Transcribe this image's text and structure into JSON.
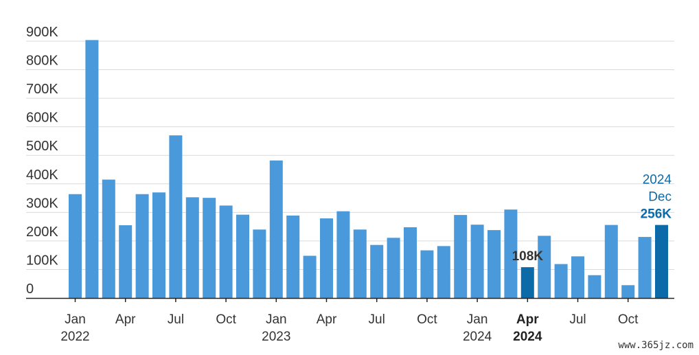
{
  "chart_data": {
    "type": "bar",
    "title": "",
    "xlabel": "",
    "ylabel": "",
    "ylim": [
      0,
      900000
    ],
    "y_ticks": [
      0,
      100000,
      200000,
      300000,
      400000,
      500000,
      600000,
      700000,
      800000,
      900000
    ],
    "y_tick_labels": [
      "0",
      "100K",
      "200K",
      "300K",
      "400K",
      "500K",
      "600K",
      "700K",
      "800K",
      "900K"
    ],
    "grid": true,
    "colors": {
      "bar": "#4A9ADB",
      "highlight": "#0D6AA8",
      "grid": "#d9d9d9",
      "axis": "#222222"
    },
    "categories": [
      "2022-01",
      "2022-02",
      "2022-03",
      "2022-04",
      "2022-05",
      "2022-06",
      "2022-07",
      "2022-08",
      "2022-09",
      "2022-10",
      "2022-11",
      "2022-12",
      "2023-01",
      "2023-02",
      "2023-03",
      "2023-04",
      "2023-05",
      "2023-06",
      "2023-07",
      "2023-08",
      "2023-09",
      "2023-10",
      "2023-11",
      "2023-12",
      "2024-01",
      "2024-02",
      "2024-03",
      "2024-04",
      "2024-05",
      "2024-06",
      "2024-07",
      "2024-08",
      "2024-09",
      "2024-10",
      "2024-11",
      "2024-12"
    ],
    "values": [
      364000,
      904000,
      415000,
      255000,
      364000,
      370000,
      570000,
      353000,
      351000,
      324000,
      292000,
      240000,
      482000,
      289000,
      148000,
      279000,
      304000,
      240000,
      186000,
      211000,
      248000,
      167000,
      182000,
      291000,
      257000,
      238000,
      310000,
      108000,
      218000,
      119000,
      146000,
      80000,
      256000,
      45000,
      214000,
      256000
    ],
    "highlighted": [
      "2024-04",
      "2024-12"
    ],
    "x_tick_labels": [
      {
        "category": "2022-01",
        "month": "Jan",
        "year": "2022",
        "bold": false
      },
      {
        "category": "2022-04",
        "month": "Apr",
        "year": "",
        "bold": false
      },
      {
        "category": "2022-07",
        "month": "Jul",
        "year": "",
        "bold": false
      },
      {
        "category": "2022-10",
        "month": "Oct",
        "year": "",
        "bold": false
      },
      {
        "category": "2023-01",
        "month": "Jan",
        "year": "2023",
        "bold": false
      },
      {
        "category": "2023-04",
        "month": "Apr",
        "year": "",
        "bold": false
      },
      {
        "category": "2023-07",
        "month": "Jul",
        "year": "",
        "bold": false
      },
      {
        "category": "2023-10",
        "month": "Oct",
        "year": "",
        "bold": false
      },
      {
        "category": "2024-01",
        "month": "Jan",
        "year": "2024",
        "bold": false
      },
      {
        "category": "2024-04",
        "month": "Apr",
        "year": "2024",
        "bold": true
      },
      {
        "category": "2024-07",
        "month": "Jul",
        "year": "",
        "bold": false
      },
      {
        "category": "2024-10",
        "month": "Oct",
        "year": "",
        "bold": false
      }
    ],
    "annotations": [
      {
        "category": "2024-04",
        "lines": [
          "108K"
        ],
        "color": "#333333",
        "bold_last": true
      },
      {
        "category": "2024-12",
        "lines": [
          "2024",
          "Dec",
          "256K"
        ],
        "color": "#0D6AA8",
        "bold_last": true
      }
    ]
  },
  "watermark": "www.365jz.com"
}
